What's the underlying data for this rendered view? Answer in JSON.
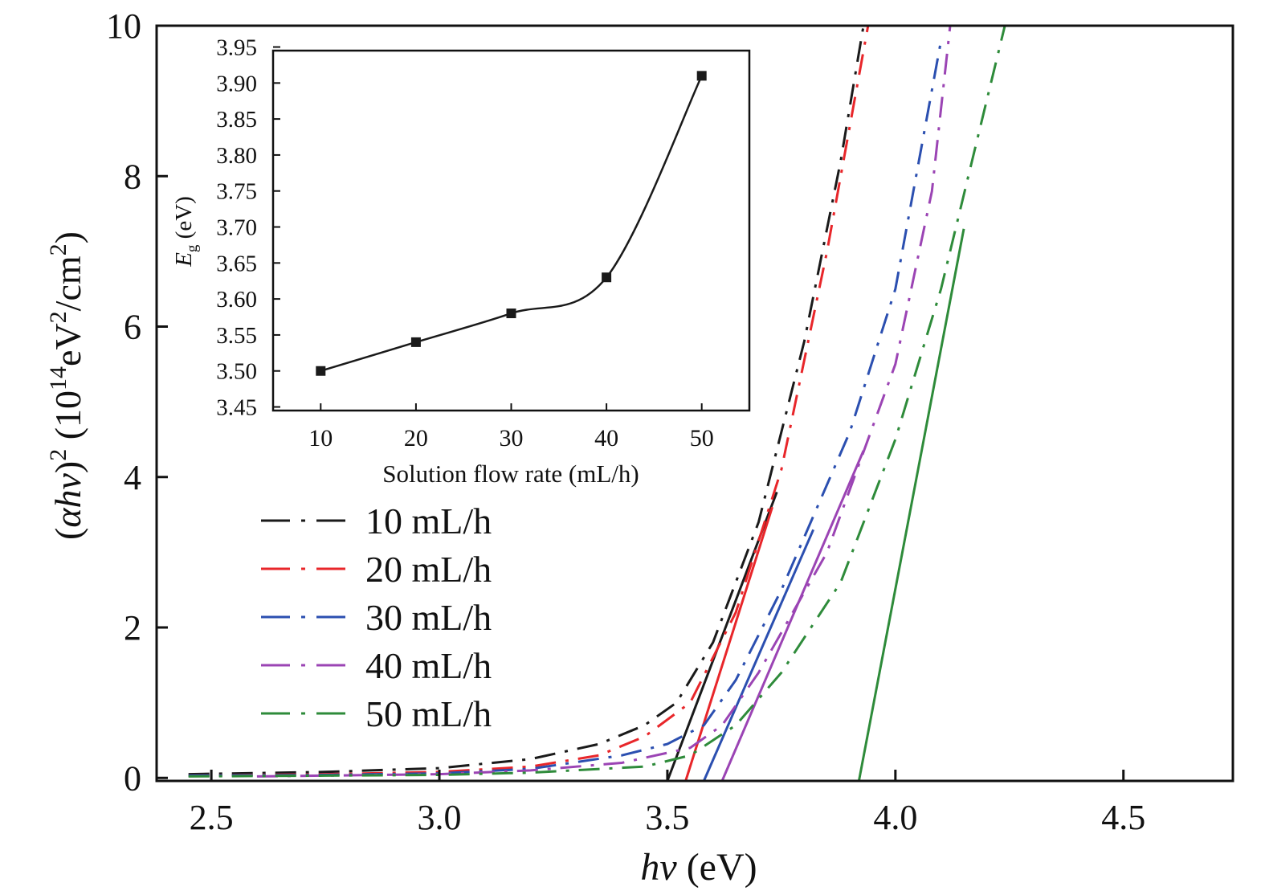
{
  "chart_data": [
    {
      "type": "line",
      "name": "main",
      "xlabel_italic": "hv",
      "xlabel_rest": " (eV)",
      "ylabel_parts": [
        "(",
        "αhv",
        ")",
        "2",
        " (10",
        "14",
        "eV",
        "2",
        "/cm",
        "2",
        ")"
      ],
      "xlim": [
        2.38,
        4.74
      ],
      "ylim": [
        -0.04,
        10
      ],
      "xticks": [
        2.5,
        3.0,
        3.5,
        4.0,
        4.5
      ],
      "xtick_labels": [
        "2.5",
        "3.0",
        "3.5",
        "4.0",
        "4.5"
      ],
      "yticks": [
        0,
        2,
        4,
        6,
        8,
        10
      ],
      "ytick_labels": [
        "0",
        "2",
        "4",
        "6",
        "8",
        "10"
      ],
      "legend_position": "center-left",
      "series": [
        {
          "name": "10 mL/h",
          "color": "#1a1a1a",
          "points": [
            [
              2.45,
              0.05
            ],
            [
              2.75,
              0.08
            ],
            [
              3.0,
              0.13
            ],
            [
              3.2,
              0.25
            ],
            [
              3.35,
              0.45
            ],
            [
              3.45,
              0.7
            ],
            [
              3.52,
              1.0
            ],
            [
              3.6,
              1.8
            ],
            [
              3.7,
              3.4
            ],
            [
              3.8,
              5.8
            ],
            [
              3.88,
              8.2
            ],
            [
              3.93,
              10
            ]
          ],
          "tangent": [
            [
              3.5,
              -0.04
            ],
            [
              3.74,
              3.8
            ]
          ]
        },
        {
          "name": "20 mL/h",
          "color": "#e8262a",
          "points": [
            [
              2.45,
              0.03
            ],
            [
              2.75,
              0.05
            ],
            [
              3.0,
              0.08
            ],
            [
              3.2,
              0.15
            ],
            [
              3.35,
              0.3
            ],
            [
              3.45,
              0.55
            ],
            [
              3.55,
              1.0
            ],
            [
              3.65,
              2.2
            ],
            [
              3.75,
              4.1
            ],
            [
              3.85,
              7.0
            ],
            [
              3.94,
              10
            ]
          ],
          "tangent": [
            [
              3.54,
              -0.04
            ],
            [
              3.73,
              3.6
            ]
          ]
        },
        {
          "name": "30 mL/h",
          "color": "#2b4fb0",
          "points": [
            [
              2.45,
              0.03
            ],
            [
              2.75,
              0.04
            ],
            [
              3.0,
              0.06
            ],
            [
              3.2,
              0.12
            ],
            [
              3.4,
              0.3
            ],
            [
              3.5,
              0.45
            ],
            [
              3.58,
              0.7
            ],
            [
              3.65,
              1.3
            ],
            [
              3.75,
              2.5
            ],
            [
              3.9,
              4.6
            ],
            [
              4.0,
              6.5
            ],
            [
              4.1,
              9.8
            ]
          ],
          "tangent": [
            [
              3.58,
              -0.04
            ],
            [
              3.82,
              3.3
            ]
          ]
        },
        {
          "name": "40 mL/h",
          "color": "#9b44b4",
          "points": [
            [
              2.6,
              0.02
            ],
            [
              3.0,
              0.05
            ],
            [
              3.2,
              0.1
            ],
            [
              3.4,
              0.2
            ],
            [
              3.55,
              0.4
            ],
            [
              3.62,
              0.7
            ],
            [
              3.7,
              1.4
            ],
            [
              3.85,
              3.0
            ],
            [
              4.0,
              5.5
            ],
            [
              4.08,
              7.8
            ],
            [
              4.12,
              10
            ]
          ],
          "tangent": [
            [
              3.62,
              -0.04
            ],
            [
              3.93,
              4.35
            ]
          ]
        },
        {
          "name": "50 mL/h",
          "color": "#2e8b3a",
          "points": [
            [
              2.45,
              0.02
            ],
            [
              2.75,
              0.03
            ],
            [
              3.0,
              0.04
            ],
            [
              3.2,
              0.07
            ],
            [
              3.45,
              0.15
            ],
            [
              3.55,
              0.3
            ],
            [
              3.65,
              0.7
            ],
            [
              3.75,
              1.4
            ],
            [
              3.88,
              2.6
            ],
            [
              4.0,
              4.5
            ],
            [
              4.1,
              6.5
            ],
            [
              4.18,
              8.5
            ],
            [
              4.24,
              10
            ]
          ],
          "tangent": [
            [
              3.92,
              -0.04
            ],
            [
              4.15,
              7.3
            ]
          ]
        }
      ]
    },
    {
      "type": "line",
      "name": "inset",
      "xlabel": "Solution flow rate (mL/h)",
      "ylabel_italic": "E",
      "ylabel_sub": "g",
      "ylabel_rest": " (eV)",
      "xlim": [
        5,
        55
      ],
      "ylim": [
        3.445,
        3.945
      ],
      "xticks": [
        10,
        20,
        30,
        40,
        50
      ],
      "xtick_labels": [
        "10",
        "20",
        "30",
        "40",
        "50"
      ],
      "yticks": [
        3.45,
        3.5,
        3.55,
        3.6,
        3.65,
        3.7,
        3.75,
        3.8,
        3.85,
        3.9,
        3.95
      ],
      "ytick_labels": [
        "3.45",
        "3.50",
        "3.55",
        "3.60",
        "3.65",
        "3.70",
        "3.75",
        "3.80",
        "3.85",
        "3.90",
        "3.95"
      ],
      "x": [
        10,
        20,
        30,
        40,
        50
      ],
      "y": [
        3.5,
        3.54,
        3.58,
        3.63,
        3.91
      ],
      "color": "#1a1a1a"
    }
  ]
}
